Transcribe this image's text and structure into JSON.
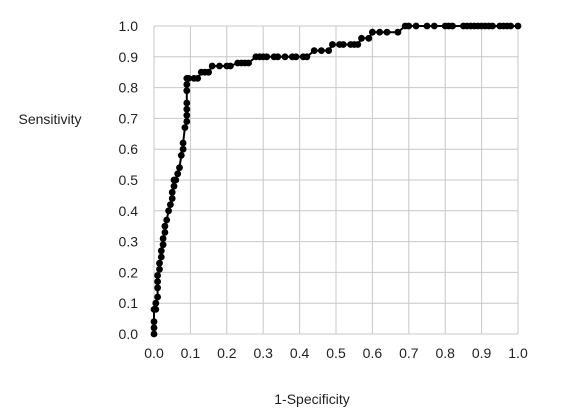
{
  "chart_data": {
    "type": "line",
    "title": "",
    "xlabel": "1-Specificity",
    "ylabel": "Sensitivity",
    "xlim": [
      0,
      1
    ],
    "ylim": [
      0,
      1
    ],
    "xticks": [
      "0.0",
      "0.1",
      "0.2",
      "0.3",
      "0.4",
      "0.5",
      "0.6",
      "0.7",
      "0.8",
      "0.9",
      "1.0"
    ],
    "yticks": [
      "0.0",
      "0.1",
      "0.2",
      "0.3",
      "0.4",
      "0.5",
      "0.6",
      "0.7",
      "0.8",
      "0.9",
      "1.0"
    ],
    "grid": true,
    "legend": "none",
    "line_color": "#000000",
    "marker_color": "#000000",
    "grid_color": "#c8c8c8",
    "series": [
      {
        "x": [
          0.0,
          0.0,
          0.0,
          0.0,
          0.005,
          0.005,
          0.01,
          0.01,
          0.01,
          0.01,
          0.015,
          0.015,
          0.02,
          0.02,
          0.025,
          0.025,
          0.03,
          0.03,
          0.035,
          0.04,
          0.045,
          0.05,
          0.05,
          0.055,
          0.055,
          0.06,
          0.065,
          0.07,
          0.075,
          0.08,
          0.08,
          0.085,
          0.09,
          0.09,
          0.09,
          0.09,
          0.09,
          0.09,
          0.09,
          0.095,
          0.11,
          0.12,
          0.13,
          0.14,
          0.15,
          0.16,
          0.18,
          0.2,
          0.21,
          0.23,
          0.24,
          0.25,
          0.26,
          0.28,
          0.29,
          0.3,
          0.31,
          0.33,
          0.34,
          0.36,
          0.38,
          0.39,
          0.41,
          0.42,
          0.44,
          0.46,
          0.48,
          0.49,
          0.51,
          0.52,
          0.54,
          0.55,
          0.56,
          0.57,
          0.59,
          0.6,
          0.62,
          0.64,
          0.67,
          0.69,
          0.7,
          0.72,
          0.75,
          0.77,
          0.8,
          0.81,
          0.82,
          0.85,
          0.86,
          0.87,
          0.88,
          0.89,
          0.9,
          0.91,
          0.92,
          0.93,
          0.95,
          0.96,
          0.97,
          0.98,
          1.0
        ],
        "y": [
          0.0,
          0.02,
          0.04,
          0.08,
          0.08,
          0.1,
          0.12,
          0.15,
          0.17,
          0.19,
          0.21,
          0.23,
          0.25,
          0.27,
          0.29,
          0.31,
          0.33,
          0.35,
          0.37,
          0.4,
          0.42,
          0.44,
          0.46,
          0.48,
          0.5,
          0.5,
          0.52,
          0.54,
          0.58,
          0.6,
          0.62,
          0.67,
          0.69,
          0.71,
          0.73,
          0.75,
          0.79,
          0.81,
          0.83,
          0.83,
          0.83,
          0.83,
          0.85,
          0.85,
          0.85,
          0.87,
          0.87,
          0.87,
          0.87,
          0.88,
          0.88,
          0.88,
          0.88,
          0.9,
          0.9,
          0.9,
          0.9,
          0.9,
          0.9,
          0.9,
          0.9,
          0.9,
          0.9,
          0.9,
          0.92,
          0.92,
          0.92,
          0.94,
          0.94,
          0.94,
          0.94,
          0.94,
          0.94,
          0.96,
          0.96,
          0.98,
          0.98,
          0.98,
          0.98,
          1.0,
          1.0,
          1.0,
          1.0,
          1.0,
          1.0,
          1.0,
          1.0,
          1.0,
          1.0,
          1.0,
          1.0,
          1.0,
          1.0,
          1.0,
          1.0,
          1.0,
          1.0,
          1.0,
          1.0,
          1.0,
          1.0
        ]
      }
    ]
  }
}
